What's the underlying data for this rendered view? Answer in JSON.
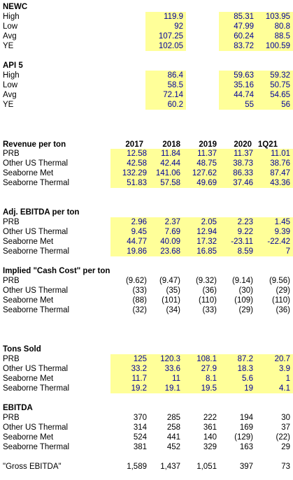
{
  "sections": [
    {
      "title": "NEWC",
      "rows": [
        {
          "label": "High",
          "values": [
            "119.9",
            "85.31",
            "103.95"
          ]
        },
        {
          "label": "Low",
          "values": [
            "92",
            "47.99",
            "80.8"
          ]
        },
        {
          "label": "Avg",
          "values": [
            "107.25",
            "60.24",
            "88.5"
          ]
        },
        {
          "label": "YE",
          "values": [
            "102.05",
            "83.72",
            "100.59"
          ]
        }
      ]
    },
    {
      "title": "API 5",
      "rows": [
        {
          "label": "High",
          "values": [
            "86.4",
            "59.63",
            "59.32"
          ]
        },
        {
          "label": "Low",
          "values": [
            "58.5",
            "35.16",
            "50.75"
          ]
        },
        {
          "label": "Avg",
          "values": [
            "72.14",
            "44.74",
            "54.65"
          ]
        },
        {
          "label": "YE",
          "values": [
            "60.2",
            "55",
            "56"
          ]
        }
      ]
    },
    {
      "title": "Revenue per ton",
      "columns": [
        "2017",
        "2018",
        "2019",
        "2020",
        "1Q21"
      ],
      "rows": [
        {
          "label": "PRB",
          "values": [
            "12.58",
            "11.84",
            "11.37",
            "11.37",
            "11.01"
          ]
        },
        {
          "label": "Other US Thermal",
          "values": [
            "42.58",
            "42.44",
            "48.75",
            "38.73",
            "38.76"
          ]
        },
        {
          "label": "Seaborne Met",
          "values": [
            "132.29",
            "141.06",
            "127.62",
            "86.33",
            "87.47"
          ]
        },
        {
          "label": "Seaborne Thermal",
          "values": [
            "51.83",
            "57.58",
            "49.69",
            "37.46",
            "43.36"
          ]
        }
      ]
    },
    {
      "title": "Adj. EBITDA per ton",
      "rows": [
        {
          "label": "PRB",
          "values": [
            "2.96",
            "2.37",
            "2.05",
            "2.23",
            "1.45"
          ]
        },
        {
          "label": "Other US Thermal",
          "values": [
            "9.45",
            "7.69",
            "12.94",
            "9.22",
            "9.39"
          ]
        },
        {
          "label": "Seaborne Met",
          "values": [
            "44.77",
            "40.09",
            "17.32",
            "-23.11",
            "-22.42"
          ]
        },
        {
          "label": "Seaborne Thermal",
          "values": [
            "19.86",
            "23.68",
            "16.85",
            "8.59",
            "7"
          ]
        }
      ]
    },
    {
      "title": "Implied \"Cash Cost\" per ton",
      "rows": [
        {
          "label": "PRB",
          "values": [
            "(9.62)",
            "(9.47)",
            "(9.32)",
            "(9.14)",
            "(9.56)"
          ]
        },
        {
          "label": "Other US Thermal",
          "values": [
            "(33)",
            "(35)",
            "(36)",
            "(30)",
            "(29)"
          ]
        },
        {
          "label": "Seaborne Met",
          "values": [
            "(88)",
            "(101)",
            "(110)",
            "(109)",
            "(110)"
          ]
        },
        {
          "label": "Seaborne Thermal",
          "values": [
            "(32)",
            "(34)",
            "(33)",
            "(29)",
            "(36)"
          ]
        }
      ]
    },
    {
      "title": "Tons Sold",
      "rows": [
        {
          "label": "PRB",
          "values": [
            "125",
            "120.3",
            "108.1",
            "87.2",
            "20.7"
          ]
        },
        {
          "label": "Other US Thermal",
          "values": [
            "33.2",
            "33.6",
            "27.9",
            "18.3",
            "3.9"
          ]
        },
        {
          "label": "Seaborne Met",
          "values": [
            "11.7",
            "11",
            "8.1",
            "5.6",
            "1"
          ]
        },
        {
          "label": "Seaborne Thermal",
          "values": [
            "19.2",
            "19.1",
            "19.5",
            "19",
            "4.1"
          ]
        }
      ]
    },
    {
      "title": "EBITDA",
      "rows": [
        {
          "label": "PRB",
          "values": [
            "370",
            "285",
            "222",
            "194",
            "30"
          ]
        },
        {
          "label": "Other US Thermal",
          "values": [
            "314",
            "258",
            "361",
            "169",
            "37"
          ]
        },
        {
          "label": "Seaborne Met",
          "values": [
            "524",
            "441",
            "140",
            "(129)",
            "(22)"
          ]
        },
        {
          "label": "Seaborne Thermal",
          "values": [
            "381",
            "452",
            "329",
            "163",
            "29"
          ]
        },
        {
          "label": "\"Gross EBITDA\"",
          "values": [
            "1,589",
            "1,437",
            "1,051",
            "397",
            "73"
          ]
        }
      ]
    }
  ]
}
